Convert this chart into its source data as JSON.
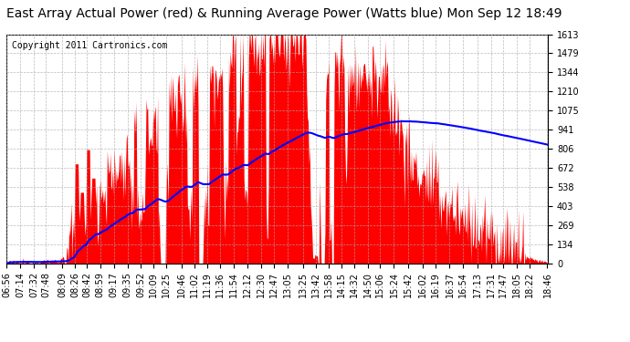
{
  "title": "East Array Actual Power (red) & Running Average Power (Watts blue) Mon Sep 12 18:49",
  "copyright_text": "Copyright 2011 Cartronics.com",
  "yticks": [
    0.0,
    134.4,
    268.8,
    403.3,
    537.7,
    672.1,
    806.5,
    940.9,
    1075.4,
    1209.8,
    1344.2,
    1478.6,
    1613.0
  ],
  "ymax": 1613.0,
  "ymin": 0.0,
  "bg_color": "#ffffff",
  "plot_bg_color": "#ffffff",
  "grid_color": "#aaaaaa",
  "fill_color": "#ff0000",
  "avg_color": "#0000ff",
  "title_fontsize": 10,
  "copyright_fontsize": 7,
  "tick_fontsize": 7,
  "xtick_labels": [
    "06:56",
    "07:14",
    "07:32",
    "07:48",
    "08:09",
    "08:26",
    "08:42",
    "08:59",
    "09:17",
    "09:35",
    "09:52",
    "10:09",
    "10:25",
    "10:46",
    "11:02",
    "11:19",
    "11:36",
    "11:54",
    "12:12",
    "12:30",
    "12:47",
    "13:05",
    "13:25",
    "13:42",
    "13:58",
    "14:15",
    "14:32",
    "14:50",
    "15:06",
    "15:24",
    "15:42",
    "16:02",
    "16:19",
    "16:37",
    "16:54",
    "17:13",
    "17:31",
    "17:47",
    "18:05",
    "18:22",
    "18:46"
  ]
}
